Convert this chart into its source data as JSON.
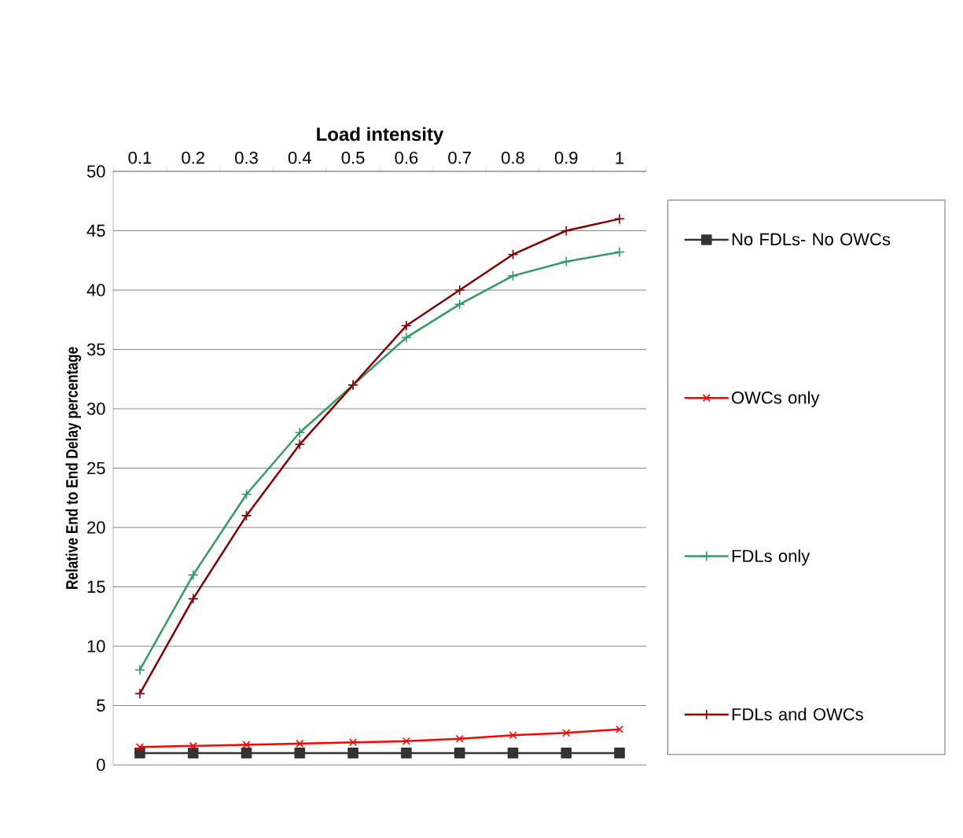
{
  "chart_data": {
    "type": "line",
    "xlabel": "Load intensity",
    "ylabel": "Relative End to End Delay percentage",
    "categories": [
      "0.1",
      "0.2",
      "0.3",
      "0.4",
      "0.5",
      "0.6",
      "0.7",
      "0.8",
      "0.9",
      "1"
    ],
    "ylim": [
      0,
      50
    ],
    "yticks": [
      0,
      5,
      10,
      15,
      20,
      25,
      30,
      35,
      40,
      45,
      50
    ],
    "grid": "y",
    "legend": "right",
    "line_style": "solid",
    "series": [
      {
        "name": "No FDLs- No OWCs",
        "color": "#333333",
        "marker": "square",
        "values": [
          1,
          1,
          1,
          1,
          1,
          1,
          1,
          1,
          1,
          1
        ]
      },
      {
        "name": "OWCs only",
        "color": "#ff0000",
        "marker": "cross",
        "values": [
          1.5,
          1.6,
          1.7,
          1.8,
          1.9,
          2.0,
          2.2,
          2.5,
          2.7,
          3.0
        ]
      },
      {
        "name": "FDLs only",
        "color": "#339966",
        "marker": "plus",
        "values": [
          8,
          16,
          22.8,
          28,
          32,
          36,
          38.8,
          41.2,
          42.4,
          43.2
        ]
      },
      {
        "name": "FDLs and OWCs",
        "color": "#800000",
        "marker": "plus",
        "values": [
          6,
          14,
          21,
          27,
          32,
          37,
          40,
          43,
          45,
          46
        ]
      }
    ]
  }
}
